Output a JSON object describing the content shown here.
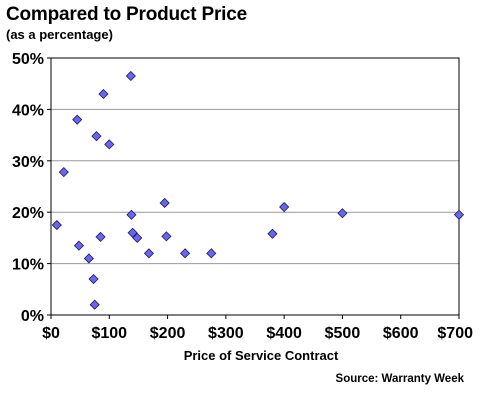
{
  "chart_data": {
    "type": "scatter",
    "title": "Compared to Product Price",
    "subtitle": "(as a percentage)",
    "xlabel": "Price of Service Contract",
    "ylabel": "",
    "source": "Source: Warranty Week",
    "xlim": [
      0,
      700
    ],
    "ylim": [
      0,
      50
    ],
    "x_ticks": [
      0,
      100,
      200,
      300,
      400,
      500,
      600,
      700
    ],
    "x_tick_labels": [
      "$0",
      "$100",
      "$200",
      "$300",
      "$400",
      "$500",
      "$600",
      "$700"
    ],
    "y_ticks": [
      0,
      10,
      20,
      30,
      40,
      50
    ],
    "y_tick_labels": [
      "0%",
      "10%",
      "20%",
      "30%",
      "40%",
      "50%"
    ],
    "grid": "horizontal",
    "marker": "diamond",
    "marker_color": "#6666EE",
    "points": [
      {
        "x": 10,
        "y": 17.5
      },
      {
        "x": 22,
        "y": 27.8
      },
      {
        "x": 45,
        "y": 38
      },
      {
        "x": 48,
        "y": 13.5
      },
      {
        "x": 65,
        "y": 11
      },
      {
        "x": 73,
        "y": 7
      },
      {
        "x": 75,
        "y": 2
      },
      {
        "x": 78,
        "y": 34.8
      },
      {
        "x": 85,
        "y": 15.2
      },
      {
        "x": 90,
        "y": 43
      },
      {
        "x": 100,
        "y": 33.2
      },
      {
        "x": 137,
        "y": 46.5
      },
      {
        "x": 138,
        "y": 19.5
      },
      {
        "x": 140,
        "y": 16
      },
      {
        "x": 148,
        "y": 15
      },
      {
        "x": 168,
        "y": 12
      },
      {
        "x": 195,
        "y": 21.8
      },
      {
        "x": 198,
        "y": 15.3
      },
      {
        "x": 230,
        "y": 12
      },
      {
        "x": 275,
        "y": 12
      },
      {
        "x": 380,
        "y": 15.8
      },
      {
        "x": 400,
        "y": 21
      },
      {
        "x": 500,
        "y": 19.8
      },
      {
        "x": 700,
        "y": 19.5
      }
    ]
  }
}
